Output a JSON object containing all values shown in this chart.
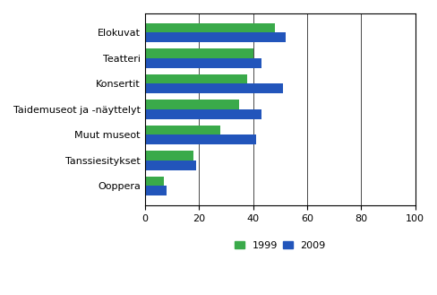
{
  "categories": [
    "Elokuvat",
    "Teatteri",
    "Konsertit",
    "Taidemuseot ja -näyttelyt",
    "Muut museot",
    "Tanssiesitykset",
    "Ooppera"
  ],
  "values_1999": [
    48,
    40,
    38,
    35,
    28,
    18,
    7
  ],
  "values_2009": [
    52,
    43,
    51,
    43,
    41,
    19,
    8
  ],
  "color_1999": "#3aaa4a",
  "color_2009": "#2255bb",
  "xlim": [
    0,
    100
  ],
  "xticks": [
    0,
    20,
    40,
    60,
    80,
    100
  ],
  "legend_labels": [
    "1999",
    "2009"
  ],
  "bar_height": 0.38,
  "figsize": [
    4.89,
    3.29
  ],
  "dpi": 100,
  "bg_color": "#f0f0f0"
}
